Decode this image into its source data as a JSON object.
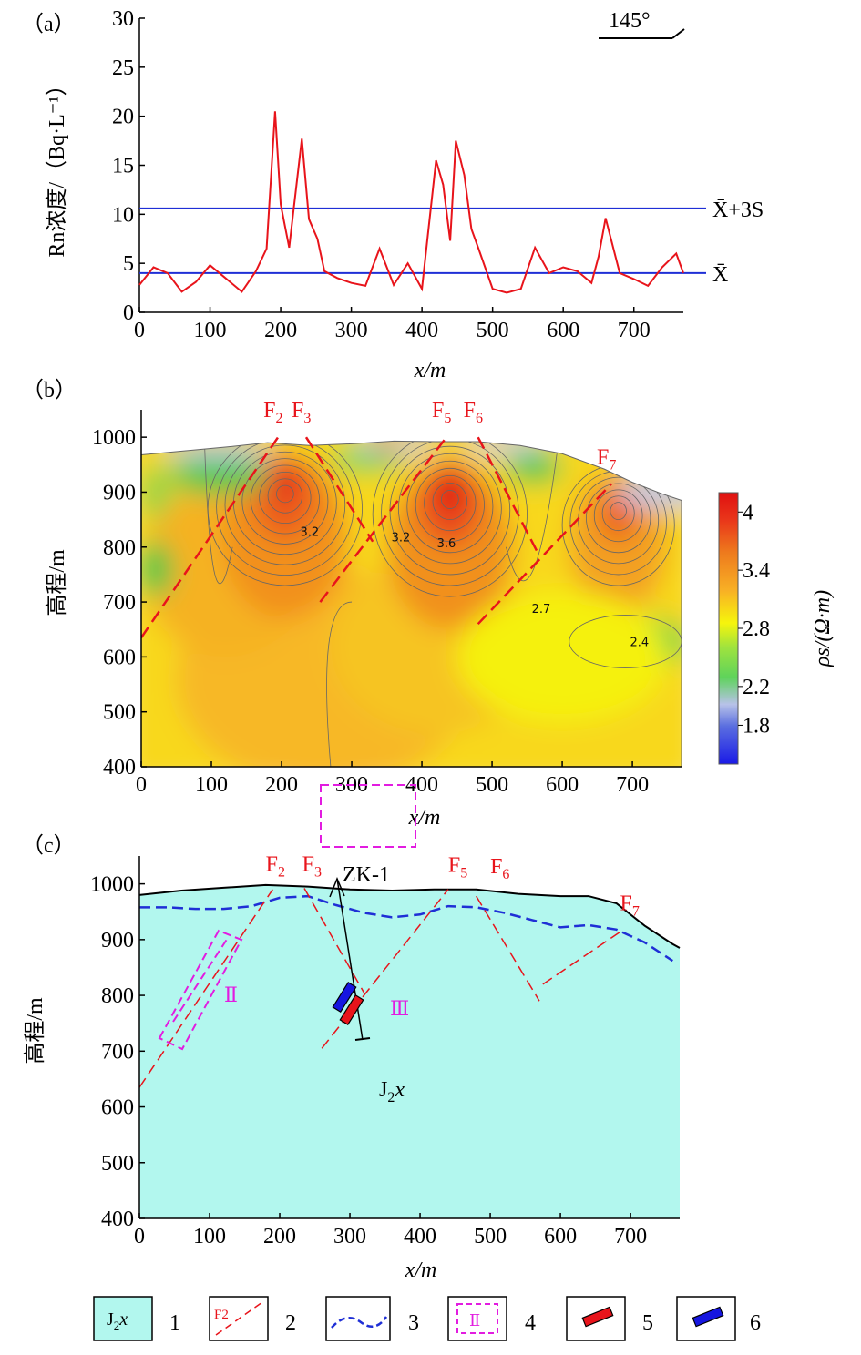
{
  "chart_data": [
    {
      "type": "line",
      "panel_label": "（a）",
      "direction_label": "145°",
      "ylabel": "Rn浓度/（Bq·L⁻¹）",
      "xlabel": "x/m",
      "xlim": [
        0,
        770
      ],
      "ylim": [
        0,
        30
      ],
      "x_ticks": [
        0,
        100,
        200,
        300,
        400,
        500,
        600,
        700
      ],
      "y_ticks": [
        0,
        5,
        10,
        15,
        20,
        25,
        30
      ],
      "series": [
        {
          "x": [
            0,
            20,
            40,
            60,
            80,
            100,
            120,
            145,
            165,
            180,
            192,
            200,
            212,
            230,
            240,
            252,
            262,
            280,
            300,
            320,
            340,
            360,
            380,
            400,
            420,
            430,
            440,
            448,
            460,
            470,
            480,
            500,
            520,
            540,
            560,
            580,
            600,
            620,
            640,
            650,
            660,
            680,
            700,
            720,
            740,
            760,
            770
          ],
          "values": [
            2.8,
            4.6,
            4.0,
            2.1,
            3.1,
            4.8,
            3.6,
            2.1,
            4.2,
            6.5,
            20.5,
            11.0,
            6.6,
            17.7,
            9.5,
            7.5,
            4.2,
            3.5,
            3.0,
            2.7,
            6.5,
            2.8,
            5.0,
            2.4,
            15.5,
            13.0,
            7.3,
            17.5,
            14.0,
            8.5,
            6.5,
            2.4,
            2.0,
            2.4,
            6.6,
            4.0,
            4.6,
            4.2,
            3.0,
            5.7,
            9.6,
            4.0,
            3.4,
            2.7,
            4.6,
            6.0,
            4.0
          ]
        }
      ],
      "reference_lines": [
        {
          "label": "X̄+3S",
          "value": 10.6
        },
        {
          "label": "X̄",
          "value": 4.0
        }
      ]
    },
    {
      "type": "heatmap",
      "panel_label": "（b）",
      "ylabel": "高程/m",
      "xlabel": "x/m",
      "xlim": [
        0,
        770
      ],
      "ylim": [
        400,
        1050
      ],
      "x_ticks": [
        0,
        100,
        200,
        300,
        400,
        500,
        600,
        700
      ],
      "y_ticks": [
        400,
        500,
        600,
        700,
        800,
        900,
        1000
      ],
      "colorbar_label": "ρs/(Ω·m)",
      "colorbar_ticks": [
        1.8,
        2.2,
        2.8,
        3.4,
        4
      ],
      "colorbar_tick_labels": [
        "1.8",
        "2.2",
        "2.8",
        "3.4",
        "4"
      ],
      "colorbar_range": [
        1.4,
        4.2
      ],
      "contour_labels": [
        {
          "text": "3.2",
          "x": 240,
          "y": 820
        },
        {
          "text": "3.2",
          "x": 370,
          "y": 810
        },
        {
          "text": "3.6",
          "x": 435,
          "y": 800
        },
        {
          "text": "2.7",
          "x": 570,
          "y": 680
        },
        {
          "text": "2.4",
          "x": 710,
          "y": 620
        }
      ],
      "faults": [
        {
          "name": "F",
          "sub": "2",
          "x1": 0,
          "y1": 635,
          "x2": 195,
          "y2": 1000
        },
        {
          "name": "F",
          "sub": "3",
          "x1": 235,
          "y1": 1000,
          "x2": 330,
          "y2": 810
        },
        {
          "name": "F",
          "sub": "5",
          "x1": 255,
          "y1": 700,
          "x2": 435,
          "y2": 1000
        },
        {
          "name": "F",
          "sub": "6",
          "x1": 480,
          "y1": 1000,
          "x2": 565,
          "y2": 790
        },
        {
          "name": "F",
          "sub": "7",
          "x1": 480,
          "y1": 660,
          "x2": 670,
          "y2": 915
        }
      ]
    },
    {
      "type": "diagram",
      "panel_label": "（c）",
      "ylabel": "高程/m",
      "xlabel": "x/m",
      "xlim": [
        0,
        770
      ],
      "ylim": [
        400,
        1050
      ],
      "x_ticks": [
        0,
        100,
        200,
        300,
        400,
        500,
        600,
        700
      ],
      "y_ticks": [
        400,
        500,
        600,
        700,
        800,
        900,
        1000
      ],
      "formation_label": "J",
      "formation_sub": "2",
      "formation_italic": "x",
      "borehole_label": "ZK-1",
      "zone_labels": [
        "Ⅱ",
        "Ⅲ"
      ],
      "fault_labels": [
        {
          "name": "F",
          "sub": "2"
        },
        {
          "name": "F",
          "sub": "3"
        },
        {
          "name": "F",
          "sub": "5"
        },
        {
          "name": "F",
          "sub": "6"
        },
        {
          "name": "F",
          "sub": "7"
        }
      ]
    }
  ],
  "legend": {
    "items": [
      {
        "symbol_text": "J",
        "symbol_sub": "2",
        "symbol_italic": "x",
        "number": "1"
      },
      {
        "symbol_text": "F2",
        "number": "2"
      },
      {
        "number": "3"
      },
      {
        "symbol_text": "Ⅱ",
        "number": "4"
      },
      {
        "number": "5"
      },
      {
        "number": "6"
      }
    ]
  },
  "colors": {
    "rn_line": "#e8141b",
    "ref_line": "#1f2fd6",
    "fault": "#e8141b",
    "formation": "#b2f7ee",
    "water_table": "#1f2fd6",
    "zone": "#e21ce0"
  }
}
